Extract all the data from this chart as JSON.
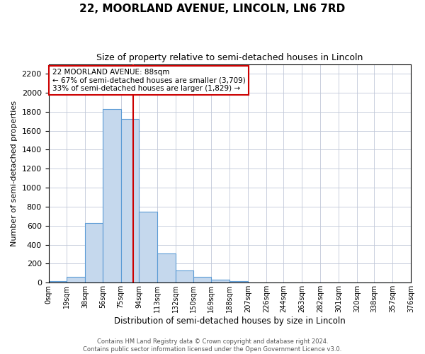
{
  "title": "22, MOORLAND AVENUE, LINCOLN, LN6 7RD",
  "subtitle": "Size of property relative to semi-detached houses in Lincoln",
  "xlabel": "Distribution of semi-detached houses by size in Lincoln",
  "ylabel": "Number of semi-detached properties",
  "bin_edges": [
    0,
    19,
    38,
    56,
    75,
    94,
    113,
    132,
    150,
    169,
    188,
    207,
    226,
    244,
    263,
    282,
    301,
    320,
    338,
    357,
    376
  ],
  "bin_labels": [
    "0sqm",
    "19sqm",
    "38sqm",
    "56sqm",
    "75sqm",
    "94sqm",
    "113sqm",
    "132sqm",
    "150sqm",
    "169sqm",
    "188sqm",
    "207sqm",
    "226sqm",
    "244sqm",
    "263sqm",
    "282sqm",
    "301sqm",
    "320sqm",
    "338sqm",
    "357sqm",
    "376sqm"
  ],
  "bar_heights": [
    15,
    60,
    625,
    1830,
    1720,
    745,
    305,
    130,
    65,
    35,
    15,
    5,
    0,
    0,
    0,
    0,
    0,
    0,
    5,
    0
  ],
  "bar_color": "#c5d8ed",
  "bar_edge_color": "#5b9bd5",
  "property_value": 88,
  "red_line_color": "#cc0000",
  "annotation_title": "22 MOORLAND AVENUE: 88sqm",
  "annotation_line1": "← 67% of semi-detached houses are smaller (3,709)",
  "annotation_line2": "33% of semi-detached houses are larger (1,829) →",
  "annotation_box_color": "#ffffff",
  "annotation_box_edge_color": "#cc0000",
  "ylim": [
    0,
    2300
  ],
  "yticks": [
    0,
    200,
    400,
    600,
    800,
    1000,
    1200,
    1400,
    1600,
    1800,
    2000,
    2200
  ],
  "footer_line1": "Contains HM Land Registry data © Crown copyright and database right 2024.",
  "footer_line2": "Contains public sector information licensed under the Open Government Licence v3.0.",
  "background_color": "#ffffff",
  "grid_color": "#c0c8d8"
}
